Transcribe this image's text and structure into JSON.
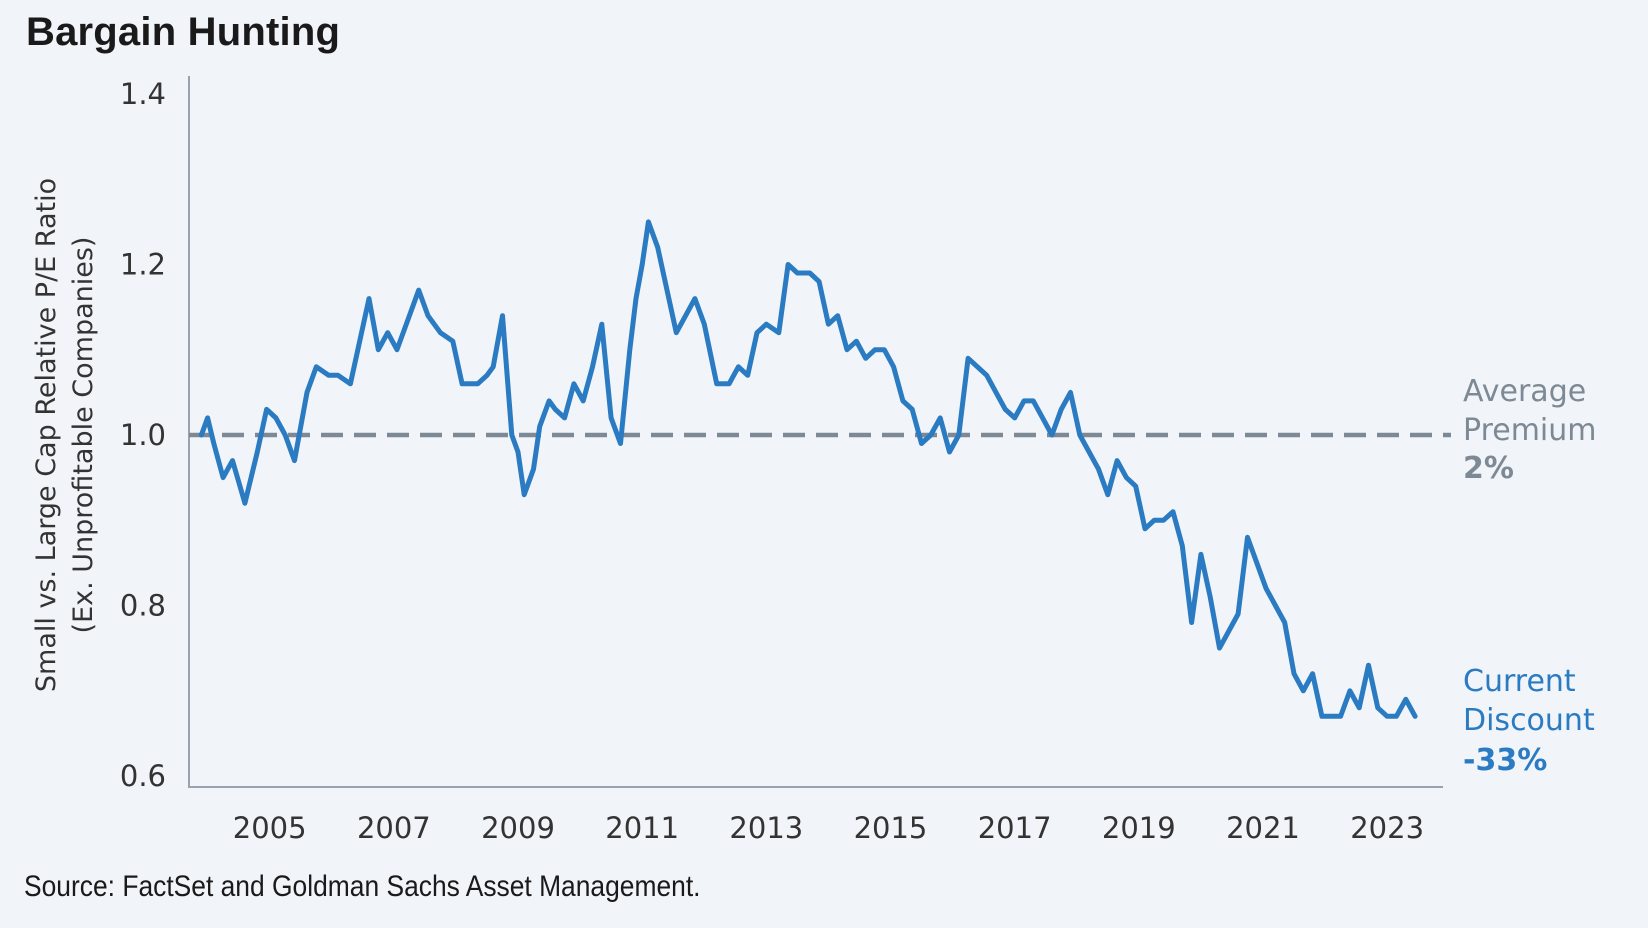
{
  "title": "Bargain Hunting",
  "source": "Source: FactSet and Goldman Sachs Asset Management.",
  "colors": {
    "series": "#2a7bc2",
    "average": "#7d8a95",
    "axis": "#9aa3ab",
    "background": "#f1f4f8"
  },
  "chart_data": {
    "type": "line",
    "title": "Bargain Hunting",
    "ylabel": [
      "Small vs. Large Cap Relative P/E Ratio",
      "(Ex. Unprofitable Companies)"
    ],
    "xlabel": "",
    "xlim": [
      2003.7,
      2023.9
    ],
    "ylim": [
      0.6,
      1.4
    ],
    "xticks": [
      "2005",
      "2007",
      "2009",
      "2011",
      "2013",
      "2015",
      "2017",
      "2019",
      "2021",
      "2023"
    ],
    "yticks": [
      "0.6",
      "0.8",
      "1.0",
      "1.2",
      "1.4"
    ],
    "grid": false,
    "reference_line": {
      "y": 1.0,
      "style": "dashed",
      "label": [
        "Average",
        "Premium"
      ],
      "value_label": "2%"
    },
    "end_annotation": {
      "label": [
        "Current",
        "Discount"
      ],
      "value_label": "-33%"
    },
    "series": [
      {
        "x": [
          2003.9,
          2004.0,
          2004.1,
          2004.25,
          2004.4,
          2004.6,
          2004.8,
          2004.95,
          2005.1,
          2005.25,
          2005.4,
          2005.6,
          2005.75,
          2005.95,
          2006.1,
          2006.3,
          2006.45,
          2006.6,
          2006.75,
          2006.9,
          2007.05,
          2007.25,
          2007.4,
          2007.55,
          2007.75,
          2007.95,
          2008.1,
          2008.25,
          2008.35,
          2008.5,
          2008.6,
          2008.75,
          2008.9,
          2009.0,
          2009.1,
          2009.25,
          2009.35,
          2009.5,
          2009.6,
          2009.75,
          2009.9,
          2010.05,
          2010.2,
          2010.35,
          2010.5,
          2010.65,
          2010.8,
          2010.9,
          2011.0,
          2011.1,
          2011.25,
          2011.4,
          2011.55,
          2011.7,
          2011.85,
          2012.0,
          2012.2,
          2012.4,
          2012.55,
          2012.7,
          2012.85,
          2013.0,
          2013.2,
          2013.35,
          2013.5,
          2013.7,
          2013.85,
          2014.0,
          2014.15,
          2014.3,
          2014.45,
          2014.6,
          2014.75,
          2014.9,
          2015.05,
          2015.2,
          2015.35,
          2015.5,
          2015.65,
          2015.8,
          2015.95,
          2016.1,
          2016.25,
          2016.4,
          2016.55,
          2016.7,
          2016.85,
          2017.0,
          2017.15,
          2017.3,
          2017.45,
          2017.6,
          2017.75,
          2017.9,
          2018.05,
          2018.2,
          2018.35,
          2018.5,
          2018.65,
          2018.8,
          2018.95,
          2019.1,
          2019.25,
          2019.4,
          2019.55,
          2019.7,
          2019.85,
          2020.0,
          2020.15,
          2020.3,
          2020.45,
          2020.6,
          2020.75,
          2020.9,
          2021.05,
          2021.2,
          2021.35,
          2021.5,
          2021.65,
          2021.8,
          2021.95,
          2022.1,
          2022.25,
          2022.4,
          2022.55,
          2022.7,
          2022.85,
          2023.0,
          2023.15,
          2023.3,
          2023.45
        ],
        "y": [
          1.0,
          1.02,
          0.99,
          0.95,
          0.97,
          0.92,
          0.98,
          1.03,
          1.02,
          1.0,
          0.97,
          1.05,
          1.08,
          1.07,
          1.07,
          1.06,
          1.11,
          1.16,
          1.1,
          1.12,
          1.1,
          1.14,
          1.17,
          1.14,
          1.12,
          1.11,
          1.06,
          1.06,
          1.06,
          1.07,
          1.08,
          1.14,
          1.0,
          0.98,
          0.93,
          0.96,
          1.01,
          1.04,
          1.03,
          1.02,
          1.06,
          1.04,
          1.08,
          1.13,
          1.02,
          0.99,
          1.1,
          1.16,
          1.2,
          1.25,
          1.22,
          1.17,
          1.12,
          1.14,
          1.16,
          1.13,
          1.06,
          1.06,
          1.08,
          1.07,
          1.12,
          1.13,
          1.12,
          1.2,
          1.19,
          1.19,
          1.18,
          1.13,
          1.14,
          1.1,
          1.11,
          1.09,
          1.1,
          1.1,
          1.08,
          1.04,
          1.03,
          0.99,
          1.0,
          1.02,
          0.98,
          1.0,
          1.09,
          1.08,
          1.07,
          1.05,
          1.03,
          1.02,
          1.04,
          1.04,
          1.02,
          1.0,
          1.03,
          1.05,
          1.0,
          0.98,
          0.96,
          0.93,
          0.97,
          0.95,
          0.94,
          0.89,
          0.9,
          0.9,
          0.91,
          0.87,
          0.78,
          0.86,
          0.81,
          0.75,
          0.77,
          0.79,
          0.88,
          0.85,
          0.82,
          0.8,
          0.78,
          0.72,
          0.7,
          0.72,
          0.67,
          0.67,
          0.67,
          0.7,
          0.68,
          0.73,
          0.68,
          0.67,
          0.67,
          0.69,
          0.67
        ]
      }
    ]
  }
}
